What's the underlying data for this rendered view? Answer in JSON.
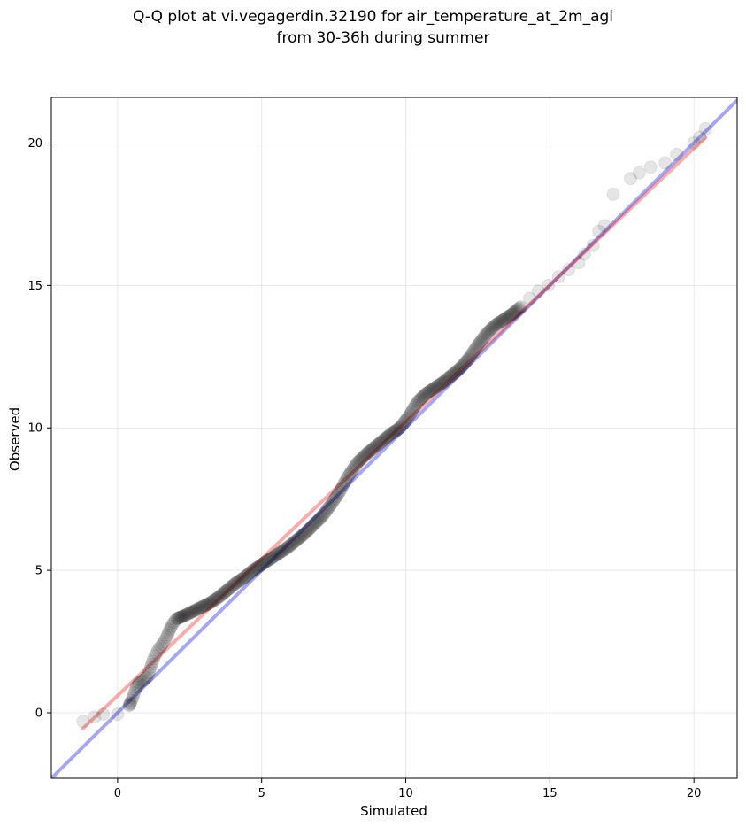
{
  "chart_data": {
    "type": "scatter",
    "title_lines": [
      "Q-Q plot at vi.vegagerdin.32190 for air_temperature_at_2m_agl",
      "from 30-36h during summer"
    ],
    "xlabel": "Simulated",
    "ylabel": "Observed",
    "xlim": [
      -2.3,
      21.5
    ],
    "ylim": [
      -2.3,
      21.6
    ],
    "x_ticks": [
      0,
      5,
      10,
      15,
      20
    ],
    "y_ticks": [
      0,
      5,
      10,
      15,
      20
    ],
    "x_tick_labels": [
      "0",
      "5",
      "10",
      "15",
      "20"
    ],
    "y_tick_labels": [
      "0",
      "5",
      "10",
      "15",
      "20"
    ],
    "grid": true,
    "colors": {
      "points": "#000000",
      "identity_line": "#0000dd",
      "fit_line": "#ee1111",
      "grid": "#d9d9d9"
    },
    "reference_lines": [
      {
        "kind": "identity",
        "x": [
          -2.3,
          21.5
        ],
        "y": [
          -2.3,
          21.5
        ]
      },
      {
        "kind": "fit",
        "x": [
          -1.2,
          20.4
        ],
        "y": [
          -0.55,
          20.2
        ]
      }
    ],
    "points": [
      [
        -1.2,
        -0.3
      ],
      [
        -0.8,
        -0.15
      ],
      [
        -0.5,
        -0.05
      ],
      [
        0.0,
        -0.05
      ],
      [
        0.4,
        0.25
      ],
      [
        0.45,
        0.35
      ],
      [
        0.55,
        0.6
      ],
      [
        0.65,
        0.9
      ],
      [
        0.75,
        1.05
      ],
      [
        0.9,
        1.15
      ],
      [
        1.05,
        1.3
      ],
      [
        1.15,
        1.6
      ],
      [
        1.25,
        1.9
      ],
      [
        1.4,
        2.2
      ],
      [
        1.55,
        2.4
      ],
      [
        1.7,
        2.65
      ],
      [
        1.8,
        2.9
      ],
      [
        1.9,
        3.1
      ],
      [
        2.05,
        3.3
      ],
      [
        2.3,
        3.4
      ],
      [
        2.6,
        3.55
      ],
      [
        2.9,
        3.7
      ],
      [
        3.2,
        3.85
      ],
      [
        3.5,
        4.05
      ],
      [
        3.8,
        4.3
      ],
      [
        4.1,
        4.55
      ],
      [
        4.4,
        4.75
      ],
      [
        4.7,
        5.0
      ],
      [
        5.0,
        5.2
      ],
      [
        5.3,
        5.4
      ],
      [
        5.6,
        5.6
      ],
      [
        5.9,
        5.8
      ],
      [
        6.2,
        6.05
      ],
      [
        6.5,
        6.3
      ],
      [
        6.8,
        6.6
      ],
      [
        7.1,
        6.9
      ],
      [
        7.4,
        7.3
      ],
      [
        7.7,
        7.75
      ],
      [
        8.0,
        8.3
      ],
      [
        8.3,
        8.75
      ],
      [
        8.6,
        9.05
      ],
      [
        8.9,
        9.3
      ],
      [
        9.2,
        9.55
      ],
      [
        9.5,
        9.8
      ],
      [
        9.8,
        10.0
      ],
      [
        10.1,
        10.4
      ],
      [
        10.4,
        10.9
      ],
      [
        10.7,
        11.2
      ],
      [
        11.0,
        11.4
      ],
      [
        11.3,
        11.6
      ],
      [
        11.6,
        11.85
      ],
      [
        11.9,
        12.1
      ],
      [
        12.2,
        12.45
      ],
      [
        12.5,
        12.9
      ],
      [
        12.8,
        13.3
      ],
      [
        13.1,
        13.6
      ],
      [
        13.4,
        13.8
      ],
      [
        13.7,
        14.0
      ],
      [
        14.0,
        14.25
      ],
      [
        14.3,
        14.55
      ],
      [
        14.6,
        14.8
      ],
      [
        14.95,
        15.0
      ],
      [
        15.3,
        15.3
      ],
      [
        15.65,
        15.55
      ],
      [
        16.0,
        15.8
      ],
      [
        16.2,
        16.1
      ],
      [
        16.5,
        16.4
      ],
      [
        16.7,
        16.9
      ],
      [
        16.9,
        17.1
      ],
      [
        17.2,
        18.2
      ],
      [
        17.8,
        18.75
      ],
      [
        18.1,
        18.95
      ],
      [
        18.5,
        19.15
      ],
      [
        19.0,
        19.3
      ],
      [
        19.4,
        19.6
      ],
      [
        20.0,
        20.0
      ],
      [
        20.2,
        20.2
      ],
      [
        20.4,
        20.5
      ]
    ]
  }
}
